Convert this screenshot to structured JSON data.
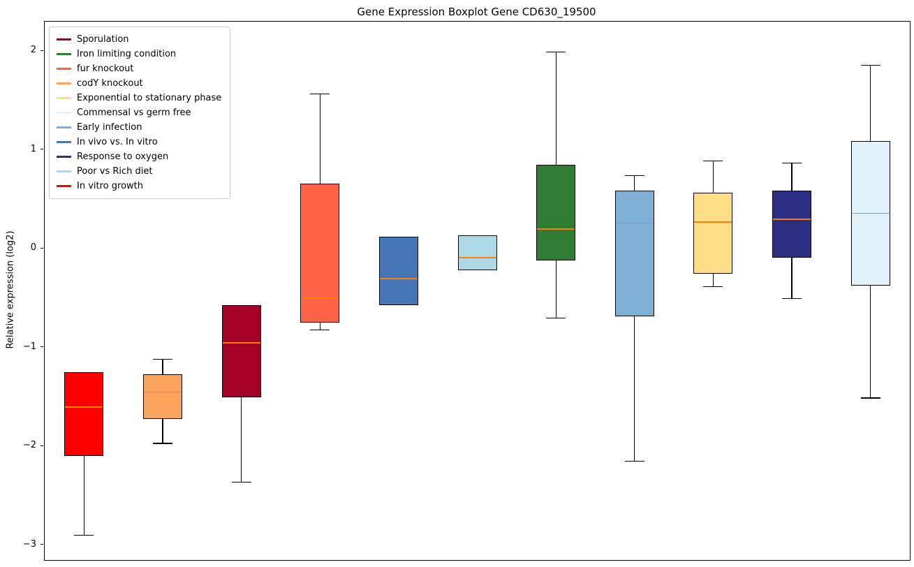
{
  "title": "Gene Expression Boxplot Gene CD630_19500",
  "y_axis": {
    "label": "Relative expression (log2)",
    "ticks": [
      {
        "label": "2",
        "value": 2
      },
      {
        "label": "1",
        "value": 1
      },
      {
        "label": "0",
        "value": 0
      },
      {
        "label": "−1",
        "value": -1
      },
      {
        "label": "−2",
        "value": -2
      },
      {
        "label": "−3",
        "value": -3
      }
    ]
  },
  "legend": [
    {
      "label": "Sporulation",
      "color": "#A50026"
    },
    {
      "label": "Iron limiting condition",
      "color": "#2E7D32"
    },
    {
      "label": "fur knockout",
      "color": "#FF6347"
    },
    {
      "label": "codY knockout",
      "color": "#FBA55C"
    },
    {
      "label": "Exponential to stationary phase",
      "color": "#FFDE85"
    },
    {
      "label": "Commensal vs germ free",
      "color": "#E2F2FA"
    },
    {
      "label": "Early infection",
      "color": "#7EB0D5"
    },
    {
      "label": "In vivo vs. In vitro",
      "color": "#4575B4"
    },
    {
      "label": "Response to oxygen",
      "color": "#2B2E83"
    },
    {
      "label": "Poor vs Rich diet",
      "color": "#ADD8E6"
    },
    {
      "label": "In vitro growth",
      "color": "#FF0000"
    }
  ],
  "chart_data": {
    "type": "boxplot",
    "title": "Gene Expression Boxplot Gene CD630_19500",
    "ylabel": "Relative expression (log2)",
    "ylim": [
      -3.15,
      2.3
    ],
    "grid": false,
    "legend_position": "upper-left",
    "median_color": "#FF7F0E",
    "box_edge_color": "#000000",
    "series": [
      {
        "name": "In vitro growth",
        "color": "#FF0000",
        "whislo": -2.9,
        "q1": -2.1,
        "med": -1.6,
        "q3": -1.25,
        "whishi": -1.25
      },
      {
        "name": "codY knockout",
        "color": "#FBA55C",
        "whislo": -1.97,
        "q1": -1.72,
        "med": -1.45,
        "q3": -1.27,
        "whishi": -1.12
      },
      {
        "name": "Sporulation",
        "color": "#A50026",
        "whislo": -2.36,
        "q1": -1.5,
        "med": -0.95,
        "q3": -0.57,
        "whishi": -0.57
      },
      {
        "name": "fur knockout",
        "color": "#FF6347",
        "whislo": -0.82,
        "q1": -0.75,
        "med": -0.5,
        "q3": 0.66,
        "whishi": 1.57
      },
      {
        "name": "In vivo vs. In vitro",
        "color": "#4575B4",
        "whislo": -0.57,
        "q1": -0.57,
        "med": -0.3,
        "q3": 0.12,
        "whishi": 0.12
      },
      {
        "name": "Poor vs Rich diet",
        "color": "#ADD8E6",
        "whislo": -0.22,
        "q1": -0.22,
        "med": -0.09,
        "q3": 0.14,
        "whishi": 0.14
      },
      {
        "name": "Iron limiting condition",
        "color": "#2E7D32",
        "whislo": -0.7,
        "q1": -0.12,
        "med": 0.2,
        "q3": 0.85,
        "whishi": 1.99
      },
      {
        "name": "Early infection",
        "color": "#7EB0D5",
        "whislo": -2.15,
        "q1": -0.68,
        "med": 0.26,
        "q3": 0.59,
        "whishi": 0.74
      },
      {
        "name": "Exponential to stationary phase",
        "color": "#FFDE85",
        "whislo": -0.38,
        "q1": -0.25,
        "med": 0.27,
        "q3": 0.57,
        "whishi": 0.89
      },
      {
        "name": "Response to oxygen",
        "color": "#2B2E83",
        "whislo": -0.5,
        "q1": -0.09,
        "med": 0.3,
        "q3": 0.59,
        "whishi": 0.87
      },
      {
        "name": "Commensal vs germ free",
        "color": "#E2F2FA",
        "whislo": -1.51,
        "q1": -0.37,
        "med": 0.36,
        "q3": 1.09,
        "whishi": 1.86
      }
    ]
  }
}
